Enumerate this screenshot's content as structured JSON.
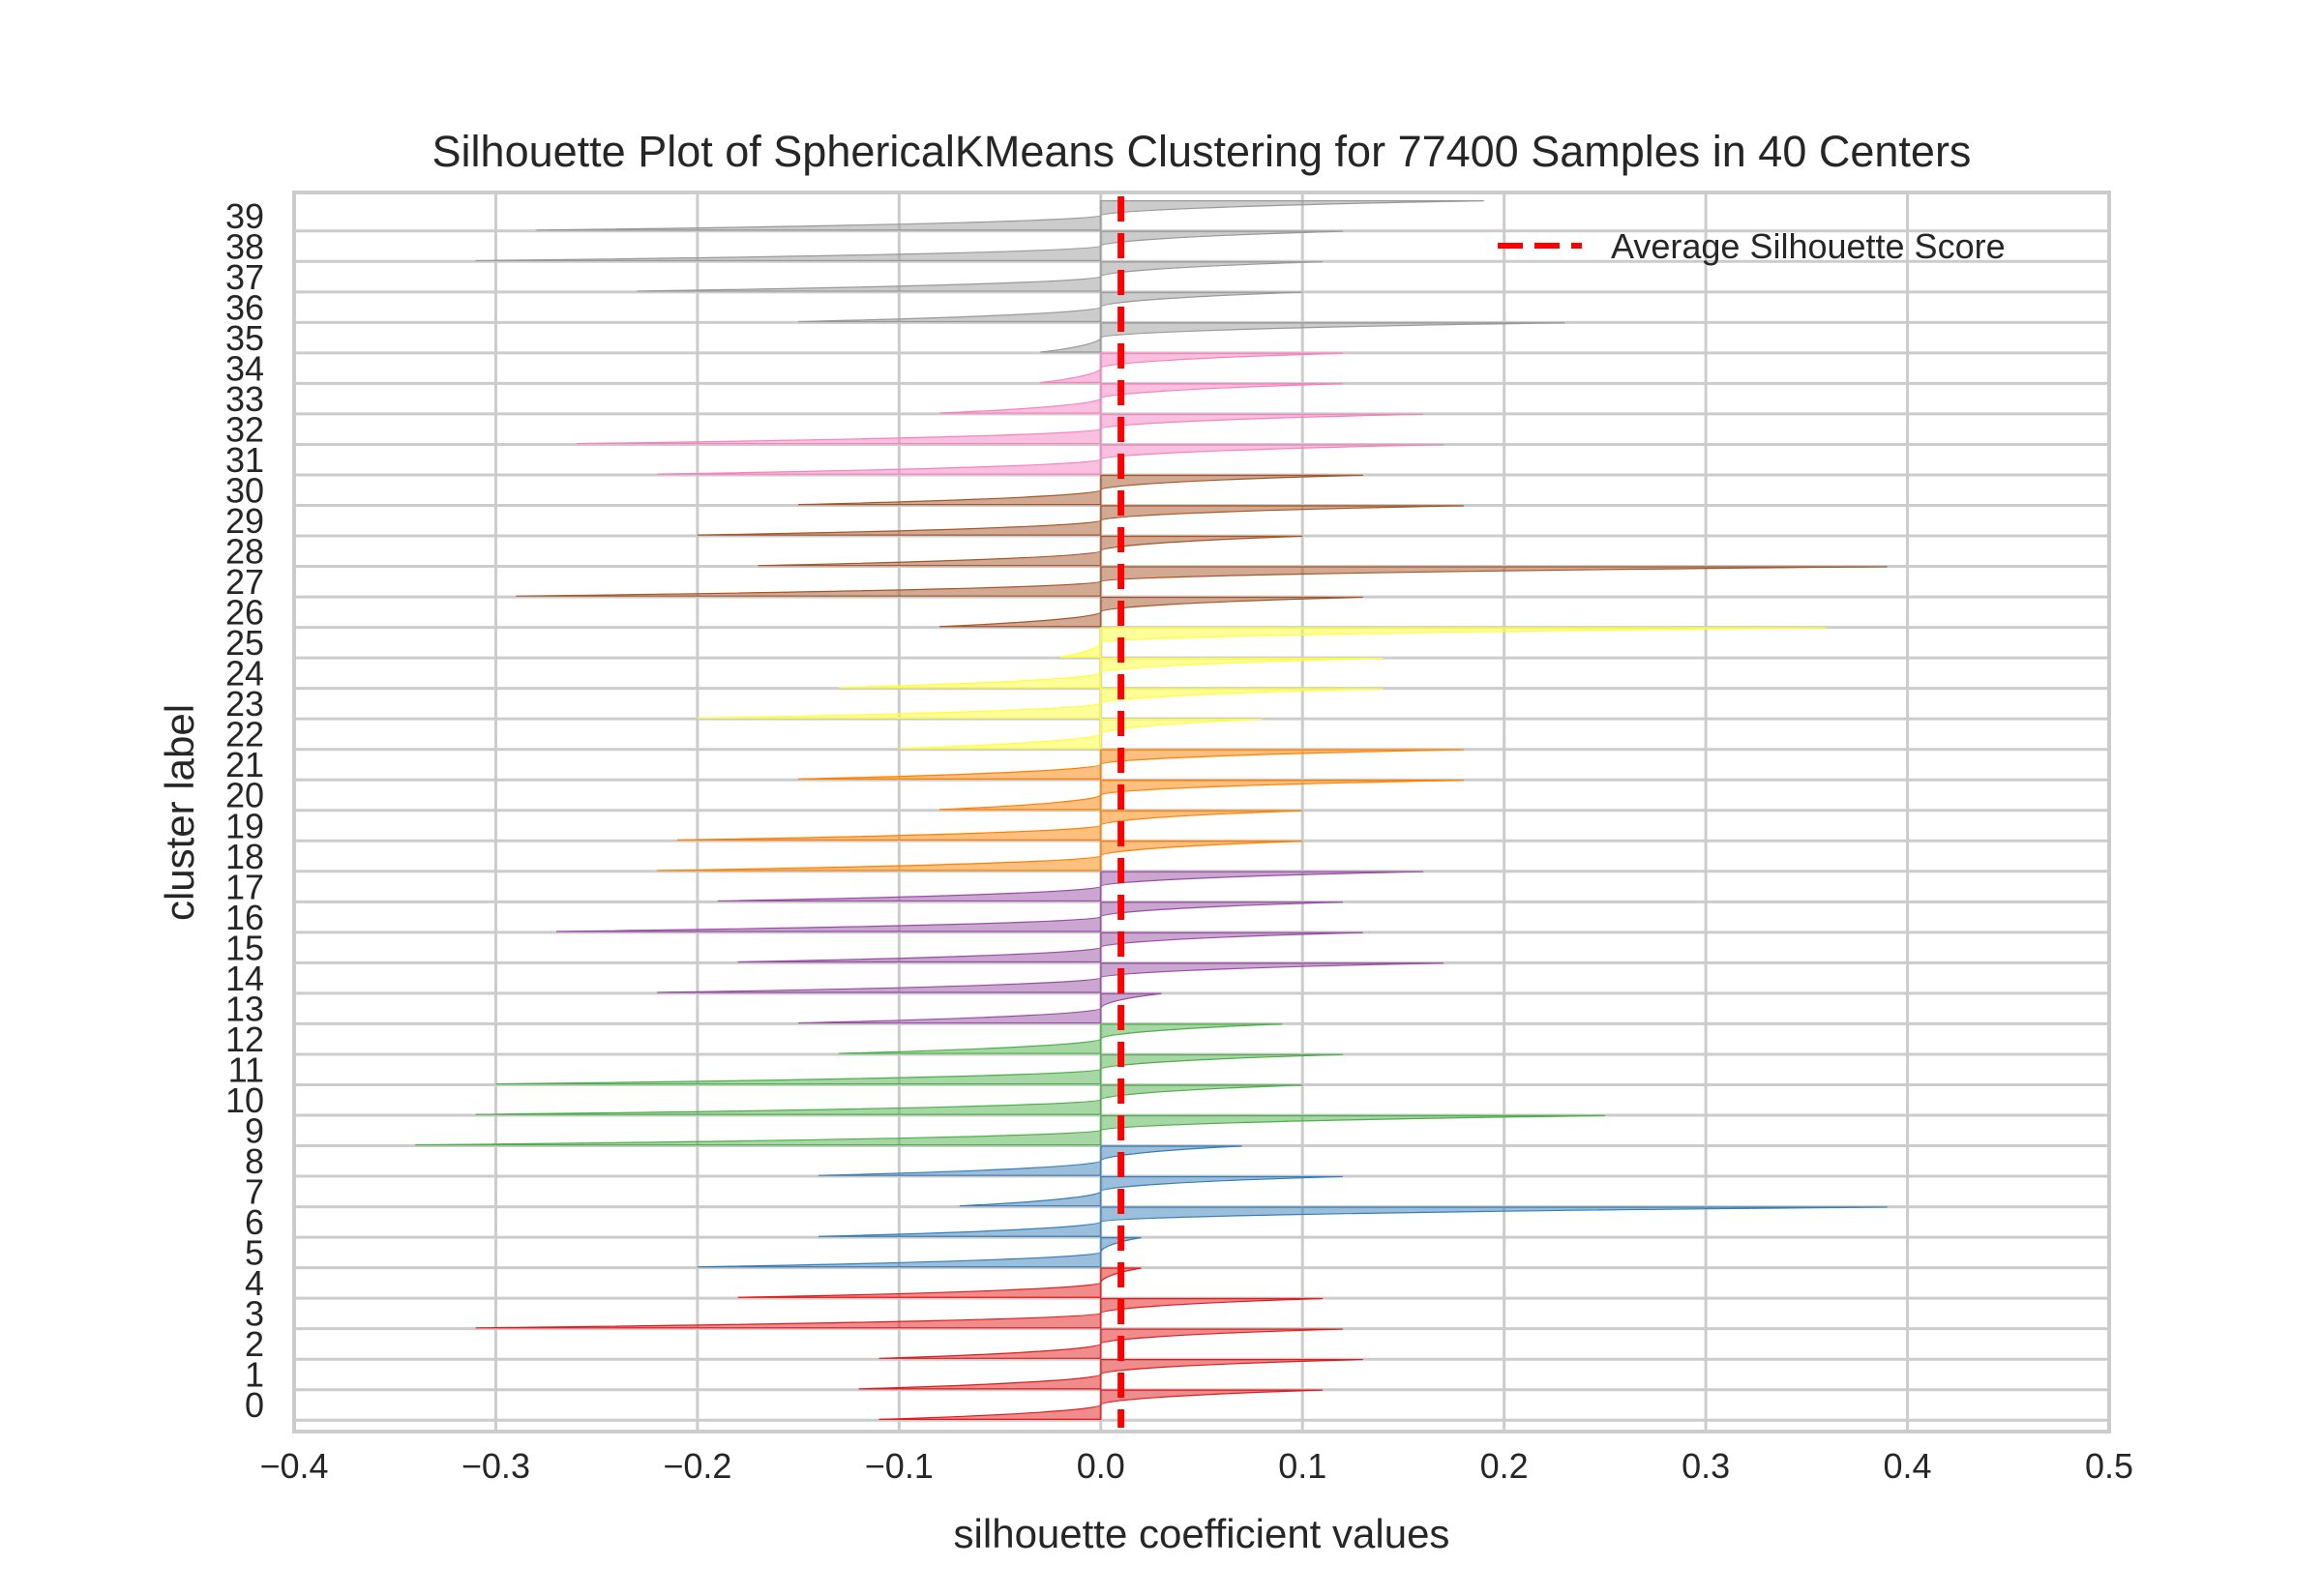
{
  "chart_data": {
    "type": "area",
    "title": "Silhouette Plot of SphericalKMeans Clustering for 77400 Samples in 40 Centers",
    "xlabel": "silhouette coefficient values",
    "ylabel": "cluster label",
    "xlim": [
      -0.4,
      0.5
    ],
    "xticks": [
      -0.4,
      -0.3,
      -0.2,
      -0.1,
      0.0,
      0.1,
      0.2,
      0.3,
      0.4,
      0.5
    ],
    "xtick_labels": [
      "−0.4",
      "−0.3",
      "−0.2",
      "−0.1",
      "0.0",
      "0.1",
      "0.2",
      "0.3",
      "0.4",
      "0.5"
    ],
    "grid": true,
    "average_silhouette_score": 0.01,
    "legend": {
      "label": "Average Silhouette Score",
      "color": "#ff0000",
      "style": "dashed",
      "placement": "upper right"
    },
    "clusters": [
      {
        "label": "0",
        "color": "#e41a1c",
        "min": -0.11,
        "max": 0.11
      },
      {
        "label": "1",
        "color": "#e41a1c",
        "min": -0.12,
        "max": 0.13
      },
      {
        "label": "2",
        "color": "#e41a1c",
        "min": -0.11,
        "max": 0.12
      },
      {
        "label": "3",
        "color": "#e41a1c",
        "min": -0.31,
        "max": 0.11
      },
      {
        "label": "4",
        "color": "#e41a1c",
        "min": -0.18,
        "max": 0.02
      },
      {
        "label": "5",
        "color": "#377eb8",
        "min": -0.2,
        "max": 0.02
      },
      {
        "label": "6",
        "color": "#377eb8",
        "min": -0.14,
        "max": 0.39
      },
      {
        "label": "7",
        "color": "#377eb8",
        "min": -0.07,
        "max": 0.12
      },
      {
        "label": "8",
        "color": "#377eb8",
        "min": -0.14,
        "max": 0.07
      },
      {
        "label": "9",
        "color": "#4daf4a",
        "min": -0.34,
        "max": 0.25
      },
      {
        "label": "10",
        "color": "#4daf4a",
        "min": -0.31,
        "max": 0.1
      },
      {
        "label": "11",
        "color": "#4daf4a",
        "min": -0.3,
        "max": 0.12
      },
      {
        "label": "12",
        "color": "#4daf4a",
        "min": -0.13,
        "max": 0.09
      },
      {
        "label": "13",
        "color": "#984ea3",
        "min": -0.15,
        "max": 0.03
      },
      {
        "label": "14",
        "color": "#984ea3",
        "min": -0.22,
        "max": 0.17
      },
      {
        "label": "15",
        "color": "#984ea3",
        "min": -0.18,
        "max": 0.13
      },
      {
        "label": "16",
        "color": "#984ea3",
        "min": -0.27,
        "max": 0.12
      },
      {
        "label": "17",
        "color": "#984ea3",
        "min": -0.19,
        "max": 0.16
      },
      {
        "label": "18",
        "color": "#ff7f00",
        "min": -0.22,
        "max": 0.1
      },
      {
        "label": "19",
        "color": "#ff7f00",
        "min": -0.21,
        "max": 0.1
      },
      {
        "label": "20",
        "color": "#ff7f00",
        "min": -0.08,
        "max": 0.18
      },
      {
        "label": "21",
        "color": "#ff7f00",
        "min": -0.15,
        "max": 0.18
      },
      {
        "label": "22",
        "color": "#ffff33",
        "min": -0.1,
        "max": 0.08
      },
      {
        "label": "23",
        "color": "#ffff33",
        "min": -0.2,
        "max": 0.14
      },
      {
        "label": "24",
        "color": "#ffff33",
        "min": -0.13,
        "max": 0.14
      },
      {
        "label": "25",
        "color": "#ffff33",
        "min": -0.02,
        "max": 0.36
      },
      {
        "label": "26",
        "color": "#a65628",
        "min": -0.08,
        "max": 0.13
      },
      {
        "label": "27",
        "color": "#a65628",
        "min": -0.29,
        "max": 0.39
      },
      {
        "label": "28",
        "color": "#a65628",
        "min": -0.17,
        "max": 0.1
      },
      {
        "label": "29",
        "color": "#a65628",
        "min": -0.2,
        "max": 0.18
      },
      {
        "label": "30",
        "color": "#a65628",
        "min": -0.15,
        "max": 0.13
      },
      {
        "label": "31",
        "color": "#f781bf",
        "min": -0.22,
        "max": 0.17
      },
      {
        "label": "32",
        "color": "#f781bf",
        "min": -0.26,
        "max": 0.16
      },
      {
        "label": "33",
        "color": "#f781bf",
        "min": -0.08,
        "max": 0.12
      },
      {
        "label": "34",
        "color": "#f781bf",
        "min": -0.03,
        "max": 0.12
      },
      {
        "label": "35",
        "color": "#999999",
        "min": -0.03,
        "max": 0.23
      },
      {
        "label": "36",
        "color": "#999999",
        "min": -0.15,
        "max": 0.1
      },
      {
        "label": "37",
        "color": "#999999",
        "min": -0.23,
        "max": 0.11
      },
      {
        "label": "38",
        "color": "#999999",
        "min": -0.31,
        "max": 0.12
      },
      {
        "label": "39",
        "color": "#999999",
        "min": -0.28,
        "max": 0.19
      }
    ]
  }
}
